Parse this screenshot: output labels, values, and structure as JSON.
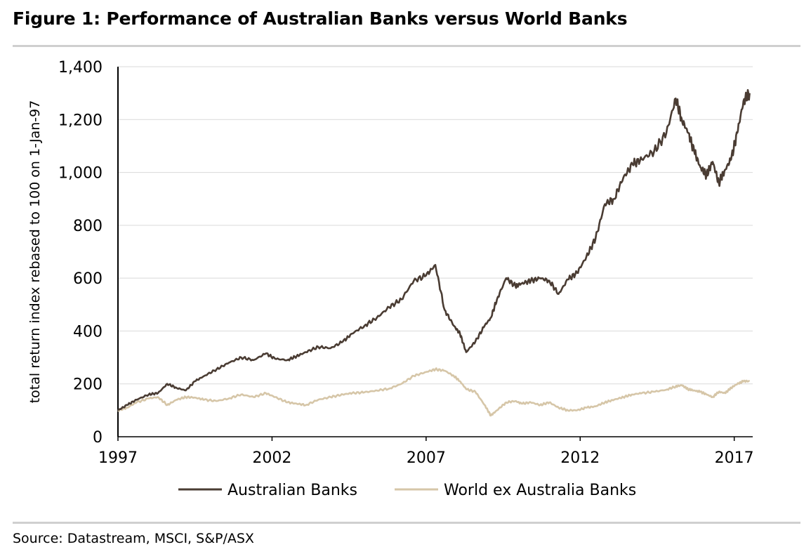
{
  "figure": {
    "title": "Figure 1: Performance of Australian Banks versus World Banks",
    "source": "Source: Datastream, MSCI, S&P/ASX"
  },
  "chart_data": {
    "type": "line",
    "title": "Figure 1: Performance of Australian Banks versus World Banks",
    "xlabel": "",
    "ylabel": "total return index rebased to 100 on 1-Jan-97",
    "xlim": [
      1997,
      2017.6
    ],
    "ylim": [
      0,
      1400
    ],
    "yticks": [
      0,
      200,
      400,
      600,
      800,
      1000,
      1200,
      1400
    ],
    "ytick_labels": [
      "0",
      "200",
      "400",
      "600",
      "800",
      "1,000",
      "1,200",
      "1,400"
    ],
    "xticks": [
      1997,
      2002,
      2007,
      2012,
      2017
    ],
    "xtick_labels": [
      "1997",
      "2002",
      "2007",
      "2012",
      "2017"
    ],
    "grid": true,
    "legend_position": "bottom",
    "series": [
      {
        "name": "Australian Banks",
        "color": "#4a3c33",
        "x": [
          1997,
          1997.3,
          1997.6,
          1998,
          1998.3,
          1998.6,
          1998.9,
          1999.2,
          1999.5,
          1999.8,
          2000.2,
          2000.6,
          2001,
          2001.4,
          2001.8,
          2002.1,
          2002.5,
          2002.8,
          2003.1,
          2003.5,
          2003.9,
          2004.3,
          2004.6,
          2005,
          2005.4,
          2005.8,
          2006.2,
          2006.6,
          2007,
          2007.3,
          2007.6,
          2007.9,
          2008.1,
          2008.3,
          2008.6,
          2008.9,
          2009.1,
          2009.3,
          2009.6,
          2009.9,
          2010.1,
          2010.4,
          2010.7,
          2011,
          2011.3,
          2011.6,
          2011.9,
          2012.2,
          2012.5,
          2012.8,
          2013.1,
          2013.4,
          2013.7,
          2014,
          2014.4,
          2014.8,
          2015.1,
          2015.3,
          2015.5,
          2015.7,
          2015.9,
          2016.1,
          2016.3,
          2016.5,
          2016.7,
          2016.9,
          2017.1,
          2017.3,
          2017.5
        ],
        "values": [
          100,
          120,
          140,
          160,
          165,
          200,
          185,
          175,
          210,
          230,
          255,
          280,
          300,
          290,
          315,
          295,
          290,
          305,
          320,
          340,
          335,
          360,
          390,
          420,
          450,
          490,
          520,
          590,
          610,
          650,
          480,
          420,
          390,
          320,
          360,
          420,
          450,
          520,
          600,
          570,
          580,
          590,
          600,
          590,
          540,
          595,
          620,
          680,
          750,
          880,
          900,
          980,
          1030,
          1050,
          1080,
          1150,
          1280,
          1200,
          1150,
          1080,
          1020,
          990,
          1040,
          960,
          1010,
          1050,
          1150,
          1270,
          1300
        ]
      },
      {
        "name": "World ex Australia Banks",
        "color": "#d6c6a8",
        "x": [
          1997,
          1997.3,
          1997.6,
          1998,
          1998.3,
          1998.6,
          1998.9,
          1999.2,
          1999.5,
          1999.8,
          2000.2,
          2000.6,
          2001,
          2001.4,
          2001.8,
          2002.1,
          2002.5,
          2002.8,
          2003.1,
          2003.5,
          2003.9,
          2004.3,
          2004.6,
          2005,
          2005.4,
          2005.8,
          2006.2,
          2006.6,
          2007,
          2007.3,
          2007.6,
          2007.9,
          2008.1,
          2008.3,
          2008.6,
          2008.9,
          2009.1,
          2009.3,
          2009.6,
          2009.9,
          2010.1,
          2010.4,
          2010.7,
          2011,
          2011.3,
          2011.6,
          2011.9,
          2012.2,
          2012.5,
          2012.8,
          2013.1,
          2013.4,
          2013.7,
          2014,
          2014.4,
          2014.8,
          2015.1,
          2015.3,
          2015.5,
          2015.7,
          2015.9,
          2016.1,
          2016.3,
          2016.5,
          2016.7,
          2016.9,
          2017.1,
          2017.3,
          2017.5
        ],
        "values": [
          100,
          110,
          130,
          145,
          150,
          120,
          140,
          150,
          148,
          140,
          135,
          145,
          160,
          150,
          165,
          150,
          130,
          125,
          120,
          140,
          150,
          160,
          165,
          168,
          175,
          182,
          200,
          230,
          245,
          255,
          250,
          230,
          210,
          180,
          170,
          120,
          80,
          100,
          130,
          135,
          125,
          130,
          120,
          130,
          110,
          100,
          100,
          110,
          115,
          130,
          140,
          150,
          160,
          165,
          170,
          178,
          190,
          195,
          180,
          175,
          170,
          160,
          150,
          170,
          165,
          185,
          200,
          210,
          210
        ]
      }
    ]
  }
}
